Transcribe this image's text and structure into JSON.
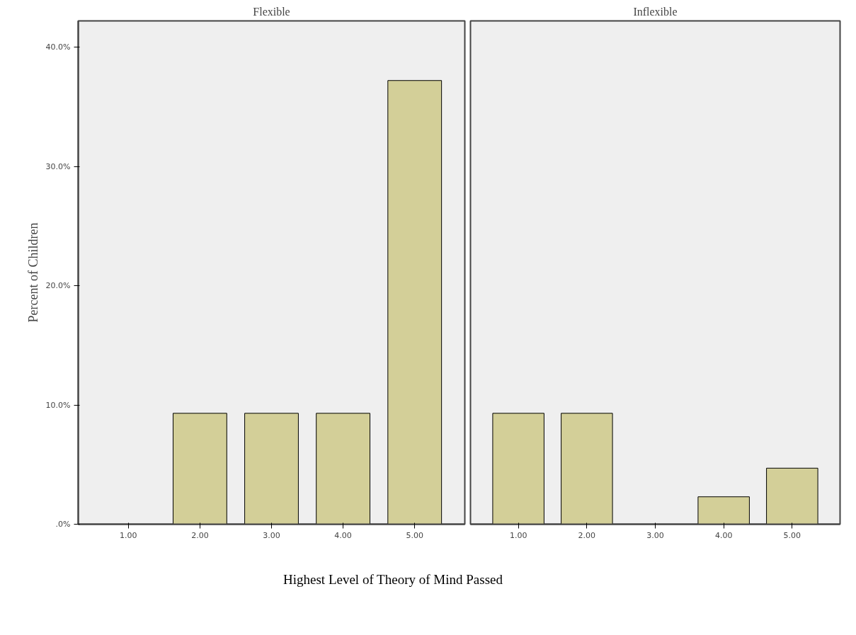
{
  "chart_data": [
    {
      "type": "bar",
      "title": "Flexible",
      "ylabel": "Percent of Children",
      "categories": [
        "1.00",
        "2.00",
        "3.00",
        "4.00",
        "5.00"
      ],
      "values": [
        0,
        9.3,
        9.3,
        9.3,
        37.2
      ],
      "color": "#d3cf98",
      "ylim": [
        0,
        42.2
      ],
      "yticks": [
        {
          "value": 0,
          "label": ".0%"
        },
        {
          "value": 10,
          "label": "10.0%"
        },
        {
          "value": 20,
          "label": "20.0%"
        },
        {
          "value": 30,
          "label": "30.0%"
        },
        {
          "value": 40,
          "label": "40.0%"
        }
      ],
      "grid": false
    },
    {
      "type": "bar",
      "title": "Inflexible",
      "xlabel": "Highest Level of Theory of Mind Passed",
      "categories": [
        "1.00",
        "2.00",
        "3.00",
        "4.00",
        "5.00"
      ],
      "values": [
        9.3,
        9.3,
        0,
        2.3,
        4.7
      ],
      "color": "#d3cf98",
      "ylim": [
        0,
        42.2
      ],
      "grid": false,
      "tick_labels": "x"
    }
  ]
}
